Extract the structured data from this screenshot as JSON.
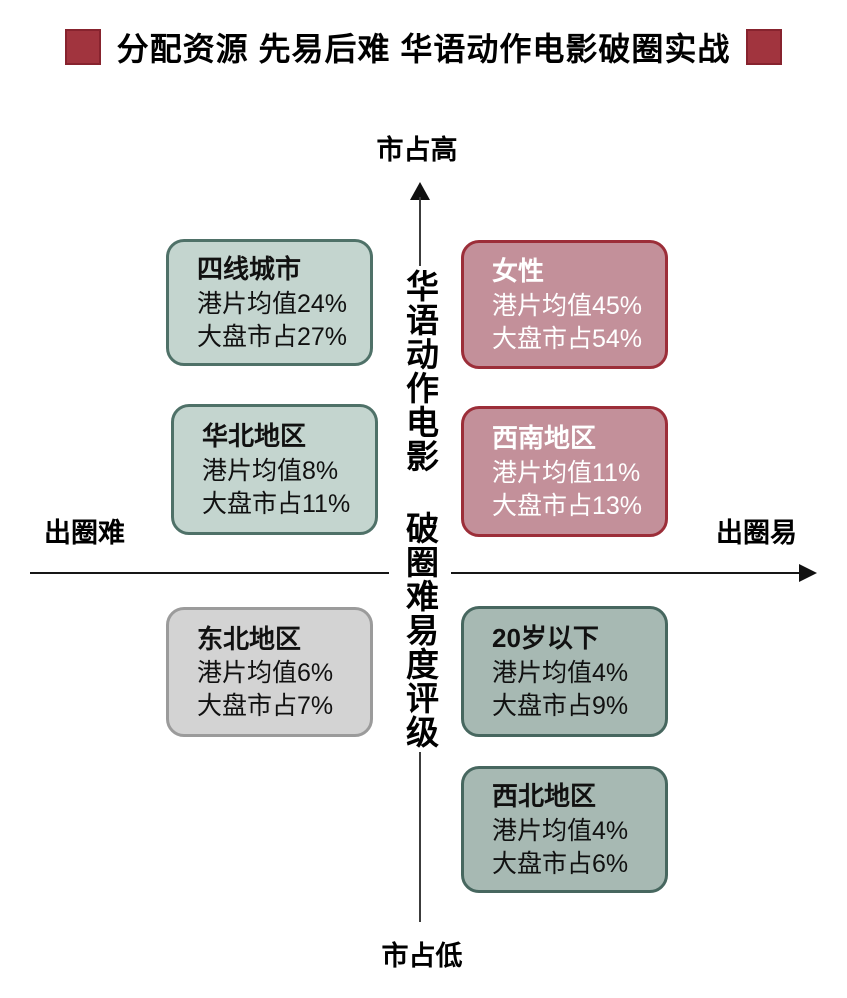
{
  "title": {
    "text": "分配资源 先易后难 华语动作电影破圈实战",
    "square_color": "#a1343e"
  },
  "axes": {
    "top": "市占高",
    "bottom": "市占低",
    "left": "出圈难",
    "right": "出圈易",
    "center": "华语动作电影 破圈难易度评级"
  },
  "boxes": [
    {
      "title": "四线城市",
      "line1": "港片均值24%",
      "line2": "大盘市占27%",
      "colors": {
        "fill": "#c4d5cf",
        "border": "#4f7168",
        "text": "#111111"
      }
    },
    {
      "title": "女性",
      "line1": "港片均值45%",
      "line2": "大盘市占54%",
      "colors": {
        "fill": "#c3909a",
        "border": "#9c2e39",
        "text": "#ffffff"
      }
    },
    {
      "title": "华北地区",
      "line1": "港片均值8%",
      "line2": "大盘市占11%",
      "colors": {
        "fill": "#c4d5cf",
        "border": "#4f7168",
        "text": "#111111"
      }
    },
    {
      "title": "西南地区",
      "line1": "港片均值11%",
      "line2": "大盘市占13%",
      "colors": {
        "fill": "#c3909a",
        "border": "#9c2e39",
        "text": "#ffffff"
      }
    },
    {
      "title": "东北地区",
      "line1": "港片均值6%",
      "line2": "大盘市占7%",
      "colors": {
        "fill": "#d3d3d3",
        "border": "#9b9b9b",
        "text": "#111111"
      }
    },
    {
      "title": "20岁以下",
      "line1": "港片均值4%",
      "line2": "大盘市占9%",
      "colors": {
        "fill": "#a7b9b3",
        "border": "#47675f",
        "text": "#111111"
      }
    },
    {
      "title": "西北地区",
      "line1": "港片均值4%",
      "line2": "大盘市占6%",
      "colors": {
        "fill": "#a7b9b3",
        "border": "#47675f",
        "text": "#111111"
      }
    }
  ]
}
